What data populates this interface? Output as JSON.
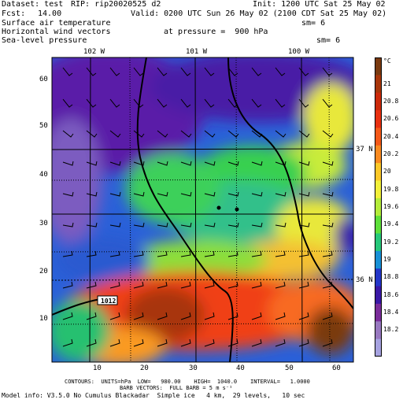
{
  "header": {
    "dataset": "Dataset: test",
    "rip": "RIP: rip20020525 d2",
    "init": "Init: 1200 UTC Sat 25 May 02",
    "fcst": "Fcst:",
    "fcst_value": "14.00",
    "valid": "Valid: 0200 UTC Sun 26 May 02 (2100 CDT Sat 25 May 02)",
    "field1": "Surface air temperature",
    "field2": "Horizontal wind vectors",
    "field3": "Sea-level pressure",
    "pressure": "at pressure =  900 hPa",
    "sm1": "sm= 6",
    "sm2": "sm= 6"
  },
  "lon_labels": [
    "102 W",
    "101 W",
    "100 W"
  ],
  "lat_labels": [
    "37 N",
    "36 N"
  ],
  "y_ticks": [
    "60",
    "50",
    "40",
    "30",
    "20",
    "10"
  ],
  "x_ticks": [
    "10",
    "20",
    "30",
    "40",
    "50",
    "60"
  ],
  "colorbar": {
    "unit": "°C",
    "labels": [
      "21",
      "20.8",
      "20.6",
      "20.4",
      "20.2",
      "20",
      "19.8",
      "19.6",
      "19.4",
      "19.2",
      "19",
      "18.8",
      "18.6",
      "18.4",
      "18.2"
    ],
    "colors": [
      "#7a3a10",
      "#a8360a",
      "#cc2a0a",
      "#e83010",
      "#f45818",
      "#fa8a20",
      "#fcc828",
      "#f2f03a",
      "#b4ec3a",
      "#5ee03a",
      "#26c87a",
      "#1890d6",
      "#2436c8",
      "#3a18a6",
      "#7a2c9a",
      "#9878c0",
      "#a6a2e0"
    ]
  },
  "isobar_label": "1012",
  "footer": {
    "contours": "CONTOURS:  UNITS=hPa  LOW=   980.00    HIGH=  1040.0    INTERVAL=   1.0000",
    "barbs": "BARB VECTORS:  FULL BARB = 5 m s⁻¹",
    "model": "Model info: V3.5.0 No Cumulus Blackadar  Simple ice   4 km,  29 levels,   10 sec"
  }
}
